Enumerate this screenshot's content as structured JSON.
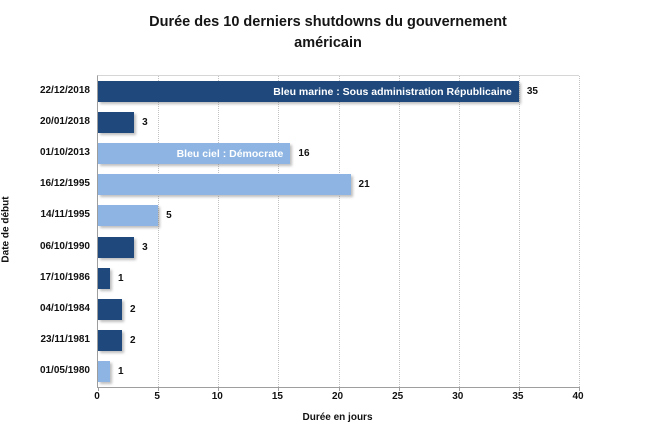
{
  "title": {
    "line1": "Durée des 10 derniers shutdowns du gouvernement",
    "line2": "américain"
  },
  "chart_data": {
    "type": "bar",
    "orientation": "horizontal",
    "title": "Durée des 10 derniers shutdowns du gouvernement américain",
    "xlabel": "Durée en jours",
    "ylabel": "Date de début",
    "xlim": [
      0,
      40
    ],
    "xticks": [
      0,
      5,
      10,
      15,
      20,
      25,
      30,
      35,
      40
    ],
    "grid": "vertical-dotted",
    "categories": [
      "22/12/2018",
      "20/01/2018",
      "01/10/2013",
      "16/12/1995",
      "14/11/1995",
      "06/10/1990",
      "17/10/1986",
      "04/10/1984",
      "23/11/1981",
      "01/05/1980"
    ],
    "values": [
      35,
      3,
      16,
      21,
      5,
      3,
      1,
      2,
      2,
      1
    ],
    "bar_colors": [
      "navy",
      "navy",
      "sky",
      "sky",
      "sky",
      "navy",
      "navy",
      "navy",
      "navy",
      "sky"
    ],
    "palette": {
      "navy": "#1F497D",
      "sky": "#8DB4E2"
    },
    "bar_annotations": {
      "0": "Bleu marine : Sous administration Républicaine",
      "2": "Bleu ciel : Démocrate"
    },
    "legend_note": "Bleu marine = Sous administration Républicaine, Bleu ciel = Démocrate (affiché dans les barres)"
  }
}
